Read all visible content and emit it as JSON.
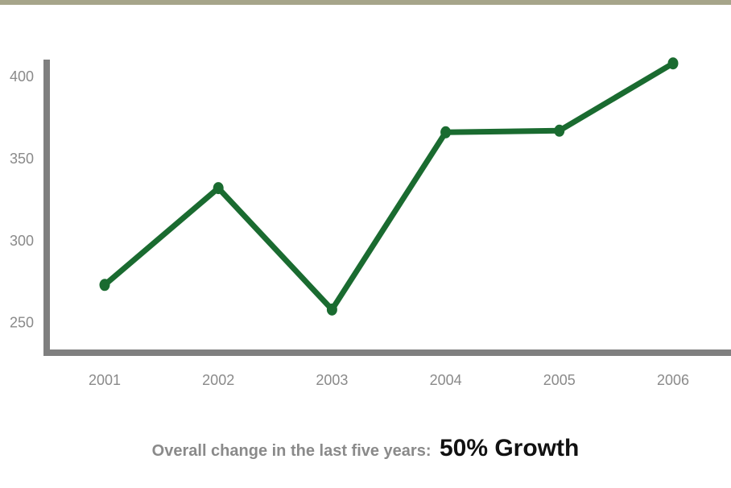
{
  "colors": {
    "top_bar": "#a6a58a",
    "axis": "#7f7f7f",
    "series": "#1a6b30",
    "tick_text": "#8a8a8a"
  },
  "chart_data": {
    "type": "line",
    "x": [
      "2001",
      "2002",
      "2003",
      "2004",
      "2005",
      "2006"
    ],
    "series": [
      {
        "values": [
          273,
          332,
          258,
          366,
          367,
          408
        ]
      }
    ],
    "yticks": [
      250,
      300,
      350,
      400
    ],
    "ylim": [
      215,
      427
    ],
    "grid": false,
    "legend": "none"
  },
  "footer": {
    "label": "Overall change in the last five years:",
    "value": "50% Growth"
  }
}
